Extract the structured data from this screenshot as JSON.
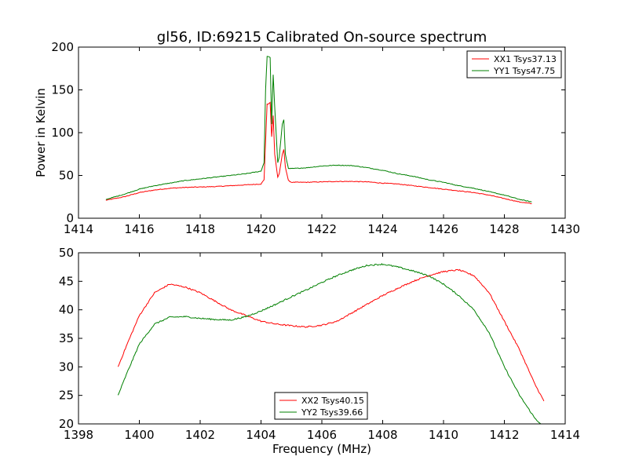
{
  "figure": {
    "title": "gl56, ID:69215 Calibrated On-source spectrum",
    "colors": {
      "xx": "#ff0000",
      "yy": "#008000",
      "axis": "#000000",
      "background": "#ffffff"
    }
  },
  "chart_data": [
    {
      "type": "line",
      "title": "gl56, ID:69215 Calibrated On-source spectrum",
      "xlabel": "",
      "ylabel": "Power in Kelvin",
      "xlim": [
        1414,
        1430
      ],
      "ylim": [
        0,
        200
      ],
      "xticks": [
        "1414",
        "1416",
        "1418",
        "1420",
        "1422",
        "1424",
        "1426",
        "1428",
        "1430"
      ],
      "yticks": [
        "0",
        "50",
        "100",
        "150",
        "200"
      ],
      "legend_position": "top-right",
      "grid": false,
      "series": [
        {
          "name": "XX1 Tsys37.13",
          "color": "#ff0000",
          "x": [
            1414.9,
            1415.5,
            1416.0,
            1416.5,
            1417.0,
            1417.5,
            1418.0,
            1418.5,
            1419.0,
            1419.5,
            1420.0,
            1420.1,
            1420.15,
            1420.2,
            1420.3,
            1420.35,
            1420.4,
            1420.45,
            1420.55,
            1420.6,
            1420.7,
            1420.75,
            1420.8,
            1420.9,
            1421.0,
            1421.5,
            1422.0,
            1422.5,
            1423.0,
            1423.5,
            1424.0,
            1424.5,
            1425.0,
            1425.5,
            1426.0,
            1426.5,
            1427.0,
            1427.5,
            1428.0,
            1428.5,
            1428.9
          ],
          "y": [
            21,
            25,
            30,
            33,
            35,
            36,
            36.5,
            37,
            38,
            39,
            40,
            45,
            90,
            133,
            135,
            95,
            120,
            75,
            48,
            52,
            75,
            80,
            60,
            44,
            42,
            42,
            42.5,
            43,
            43,
            42.5,
            41,
            40,
            38,
            36,
            34,
            32,
            30,
            27,
            23,
            19,
            17
          ]
        },
        {
          "name": "YY1 Tsys47.75",
          "color": "#008000",
          "x": [
            1414.9,
            1415.5,
            1416.0,
            1416.5,
            1417.0,
            1417.5,
            1418.0,
            1418.5,
            1419.0,
            1419.5,
            1420.0,
            1420.1,
            1420.15,
            1420.2,
            1420.3,
            1420.35,
            1420.4,
            1420.45,
            1420.55,
            1420.6,
            1420.7,
            1420.75,
            1420.8,
            1420.9,
            1421.0,
            1421.5,
            1422.0,
            1422.5,
            1423.0,
            1423.5,
            1424.0,
            1424.5,
            1425.0,
            1425.5,
            1426.0,
            1426.5,
            1427.0,
            1427.5,
            1428.0,
            1428.5,
            1428.9
          ],
          "y": [
            22,
            28,
            34,
            38,
            41,
            44,
            46,
            48,
            50,
            52,
            55,
            65,
            150,
            189,
            188,
            110,
            168,
            130,
            65,
            72,
            110,
            115,
            75,
            58,
            58,
            59,
            61,
            62,
            61.5,
            59,
            56,
            52,
            49,
            45,
            42,
            38,
            35,
            31,
            27,
            22,
            19
          ]
        }
      ]
    },
    {
      "type": "line",
      "title": "",
      "xlabel": "Frequency (MHz)",
      "ylabel": "",
      "xlim": [
        1398,
        1414
      ],
      "ylim": [
        20,
        50
      ],
      "xticks": [
        "1398",
        "1400",
        "1402",
        "1404",
        "1406",
        "1408",
        "1410",
        "1412",
        "1414"
      ],
      "yticks": [
        "20",
        "25",
        "30",
        "35",
        "40",
        "45",
        "50"
      ],
      "legend_position": "bottom-center",
      "grid": false,
      "series": [
        {
          "name": "XX2 Tsys40.15",
          "color": "#ff0000",
          "x": [
            1399.3,
            1399.6,
            1400.0,
            1400.5,
            1401.0,
            1401.5,
            1402.0,
            1402.5,
            1403.0,
            1403.5,
            1404.0,
            1404.5,
            1405.0,
            1405.5,
            1406.0,
            1406.5,
            1407.0,
            1407.5,
            1408.0,
            1408.5,
            1409.0,
            1409.5,
            1410.0,
            1410.5,
            1411.0,
            1411.5,
            1412.0,
            1412.5,
            1413.0,
            1413.3
          ],
          "y": [
            30,
            34,
            39,
            43,
            44.5,
            44,
            43,
            41.5,
            40,
            39,
            38,
            37.5,
            37.2,
            37,
            37.3,
            38,
            39.5,
            41,
            42.5,
            43.8,
            45,
            46,
            46.7,
            47,
            46,
            43,
            38,
            33,
            27,
            24
          ]
        },
        {
          "name": "YY2 Tsys39.66",
          "color": "#008000",
          "x": [
            1399.3,
            1399.6,
            1400.0,
            1400.5,
            1401.0,
            1401.5,
            1402.0,
            1402.5,
            1403.0,
            1403.5,
            1404.0,
            1404.5,
            1405.0,
            1405.5,
            1406.0,
            1406.5,
            1407.0,
            1407.5,
            1408.0,
            1408.5,
            1409.0,
            1409.5,
            1410.0,
            1410.5,
            1411.0,
            1411.5,
            1412.0,
            1412.5,
            1413.0,
            1413.2
          ],
          "y": [
            25,
            29,
            34,
            37.5,
            38.7,
            38.8,
            38.5,
            38.3,
            38.2,
            38.8,
            39.8,
            41,
            42.3,
            43.5,
            44.8,
            46,
            47,
            47.8,
            48,
            47.5,
            46.8,
            46,
            44.5,
            42.5,
            40,
            36,
            30,
            25,
            21,
            20
          ]
        }
      ]
    }
  ]
}
